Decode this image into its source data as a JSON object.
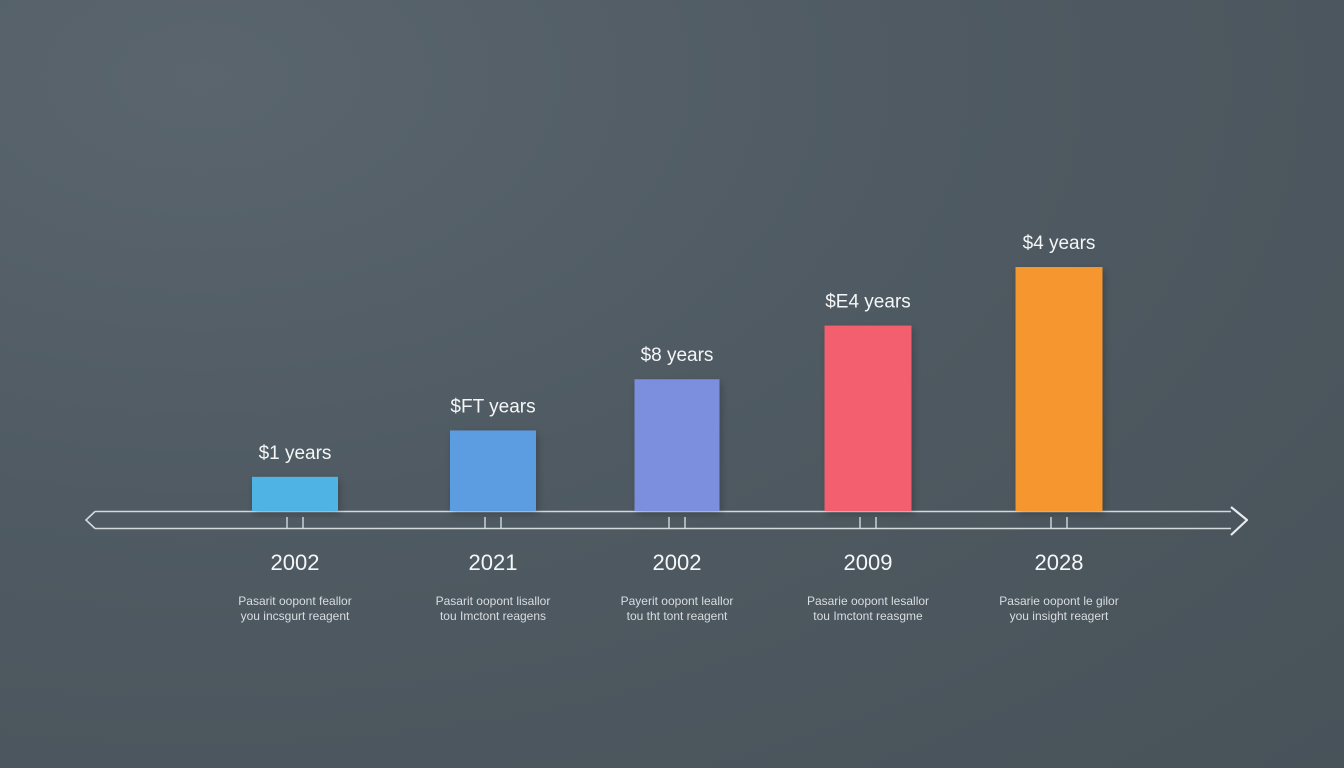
{
  "chart_data": {
    "type": "bar",
    "title": "",
    "xlabel": "",
    "ylabel": "",
    "ylim": [
      0,
      100
    ],
    "grid": false,
    "categories": [
      "2002",
      "2021",
      "2002",
      "2009",
      "2028"
    ],
    "values": [
      14,
      33,
      54,
      76,
      100
    ],
    "value_labels": [
      "$1 years",
      "$FT years",
      "$8 years",
      "$E4 years",
      "$4 years"
    ],
    "descriptions": [
      [
        "Pasarit oopont feallor",
        "you incsgurt reagent"
      ],
      [
        "Pasarit oopont lisallor",
        "tou Imctont reagens"
      ],
      [
        "Payerit oopont leallor",
        "tou tht tont reagent"
      ],
      [
        "Pasarie oopont lesallor",
        "tou Imctont reasgme"
      ],
      [
        "Pasarie oopont le gilor",
        "you insight reagert"
      ]
    ],
    "bar_colors": [
      "#4fb3e3",
      "#5c9de2",
      "#7b8fdf",
      "#f45e6f",
      "#f6962f"
    ]
  }
}
